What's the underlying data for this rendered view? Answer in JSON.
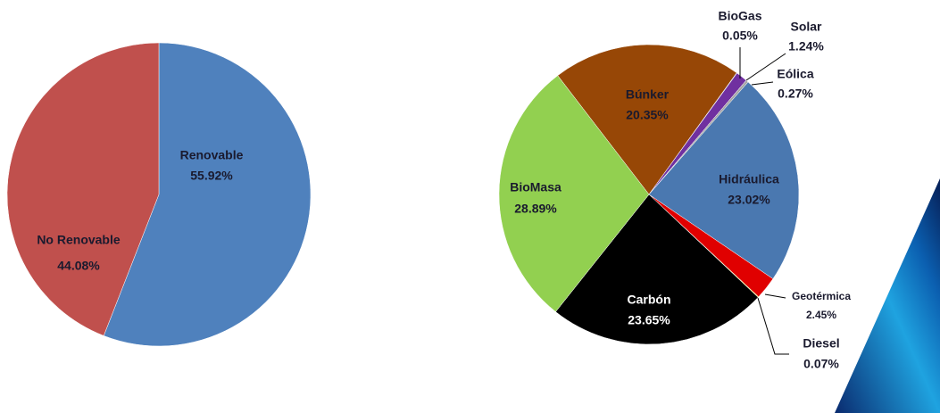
{
  "chart_data": [
    {
      "type": "pie",
      "categories": [
        "Renovable",
        "No Renovable"
      ],
      "values": [
        55.92,
        44.08
      ],
      "value_labels": [
        "55.92%",
        "44.08%"
      ],
      "colors": [
        "#4f81bd",
        "#c0504d"
      ]
    },
    {
      "type": "pie",
      "categories": [
        "Búnker",
        "BioGas",
        "Solar",
        "Eólica",
        "Hidráulica",
        "Geotérmica",
        "Diesel",
        "Carbón",
        "BioMasa"
      ],
      "values": [
        20.35,
        0.05,
        1.24,
        0.27,
        23.02,
        2.45,
        0.07,
        23.65,
        28.89
      ],
      "value_labels": [
        "20.35%",
        "0.05%",
        "1.24%",
        "0.27%",
        "23.02%",
        "2.45%",
        "0.07%",
        "23.65%",
        "28.89%"
      ],
      "colors": [
        "#974706",
        "#3b5bc4",
        "#7030a0",
        "#a6a6a6",
        "#4a78b0",
        "#e00000",
        "#ffff00",
        "#000000",
        "#92d050"
      ]
    }
  ]
}
